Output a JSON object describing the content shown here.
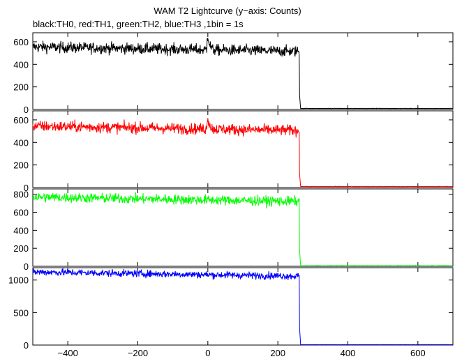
{
  "title": "WAM T2 Lightcurve (y−axis: Counts)",
  "subtitle": "black:TH0, red:TH1, green:TH2, blue:TH3 ,1bin = 1s",
  "chart_data": {
    "type": "line",
    "x_range": [
      -500,
      700
    ],
    "x_ticks": [
      -400,
      -200,
      0,
      200,
      400,
      600
    ],
    "x_tick_labels": [
      "−400",
      "−200",
      "0",
      "200",
      "400",
      "600"
    ],
    "panels": [
      {
        "series_name": "TH0",
        "color": "#000000",
        "ylim": [
          0,
          680
        ],
        "y_ticks": [
          0,
          200,
          400,
          600
        ],
        "y_tick_labels": [
          "0",
          "200",
          "400",
          "600"
        ],
        "level_start": 555,
        "level_end": 515,
        "noise": 25,
        "burst": {
          "x": 0,
          "peak": 140,
          "width": 5
        },
        "drop_x": 262,
        "tail_level": 8
      },
      {
        "series_name": "TH1",
        "color": "#ff0000",
        "ylim": [
          0,
          680
        ],
        "y_ticks": [
          0,
          200,
          400,
          600
        ],
        "y_tick_labels": [
          "0",
          "200",
          "400",
          "600"
        ],
        "level_start": 545,
        "level_end": 505,
        "noise": 25,
        "burst": {
          "x": 0,
          "peak": 110,
          "width": 5
        },
        "drop_x": 262,
        "tail_level": 8
      },
      {
        "series_name": "TH2",
        "color": "#00ff00",
        "ylim": [
          0,
          860
        ],
        "y_ticks": [
          0,
          200,
          400,
          600,
          800
        ],
        "y_tick_labels": [
          "0",
          "200",
          "400",
          "600",
          "800"
        ],
        "level_start": 770,
        "level_end": 720,
        "noise": 28,
        "burst": null,
        "drop_x": 262,
        "tail_level": 5
      },
      {
        "series_name": "TH3",
        "color": "#0000ff",
        "ylim": [
          0,
          1190
        ],
        "y_ticks": [
          0,
          500,
          1000
        ],
        "y_tick_labels": [
          "0",
          "500",
          "1000"
        ],
        "level_start": 1125,
        "level_end": 1060,
        "noise": 28,
        "burst": null,
        "drop_x": 262,
        "tail_level": 5
      }
    ]
  }
}
